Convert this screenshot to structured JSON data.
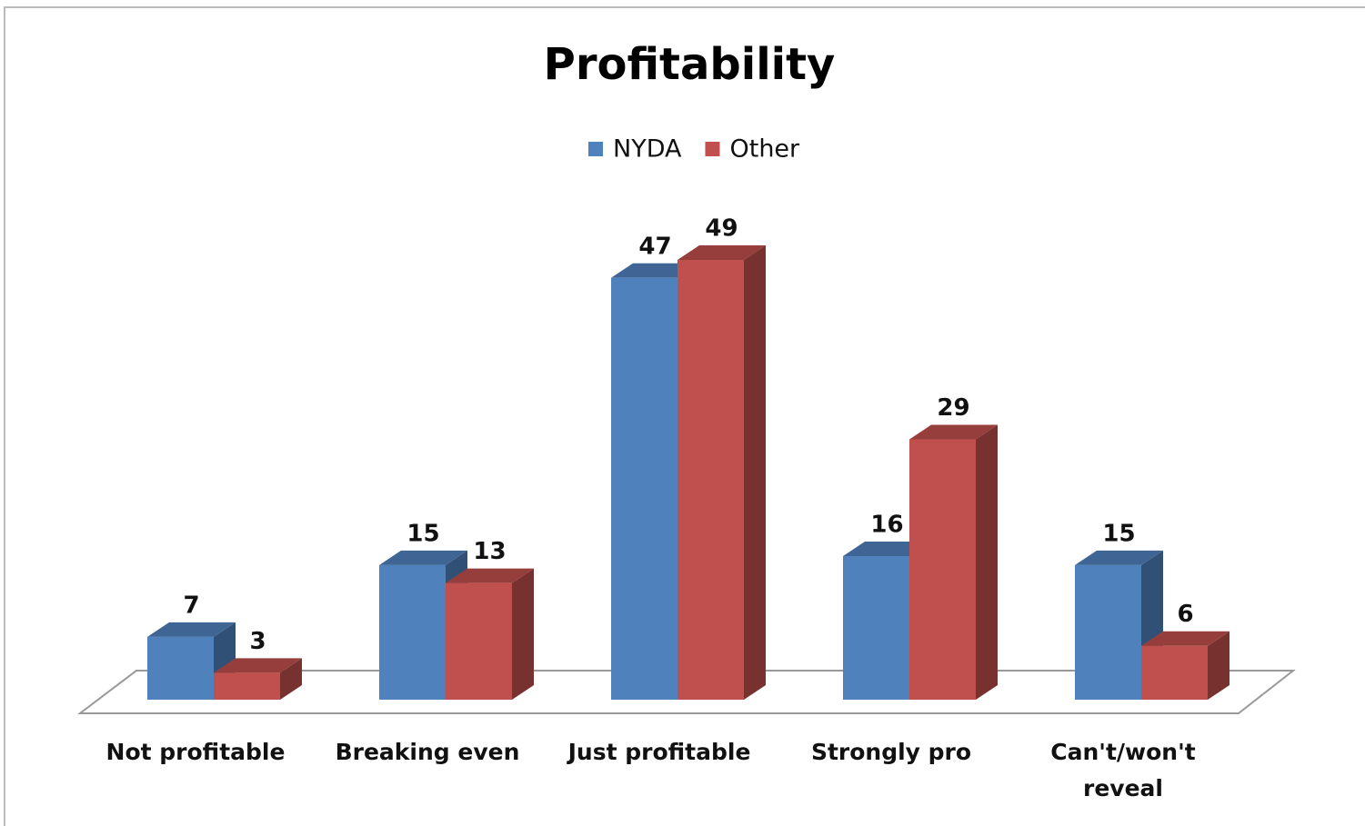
{
  "chart_data": {
    "type": "bar3d",
    "title": "Profitability",
    "categories": [
      "Not profitable",
      "Breaking even",
      "Just profitable",
      "Strongly pro",
      "Can't/won't reveal"
    ],
    "series": [
      {
        "name": "NYDA",
        "color": "#4f81bd",
        "values": [
          7,
          15,
          47,
          16,
          15
        ]
      },
      {
        "name": "Other",
        "color": "#c0504d",
        "values": [
          3,
          13,
          49,
          29,
          6
        ]
      }
    ],
    "legend": "top"
  }
}
